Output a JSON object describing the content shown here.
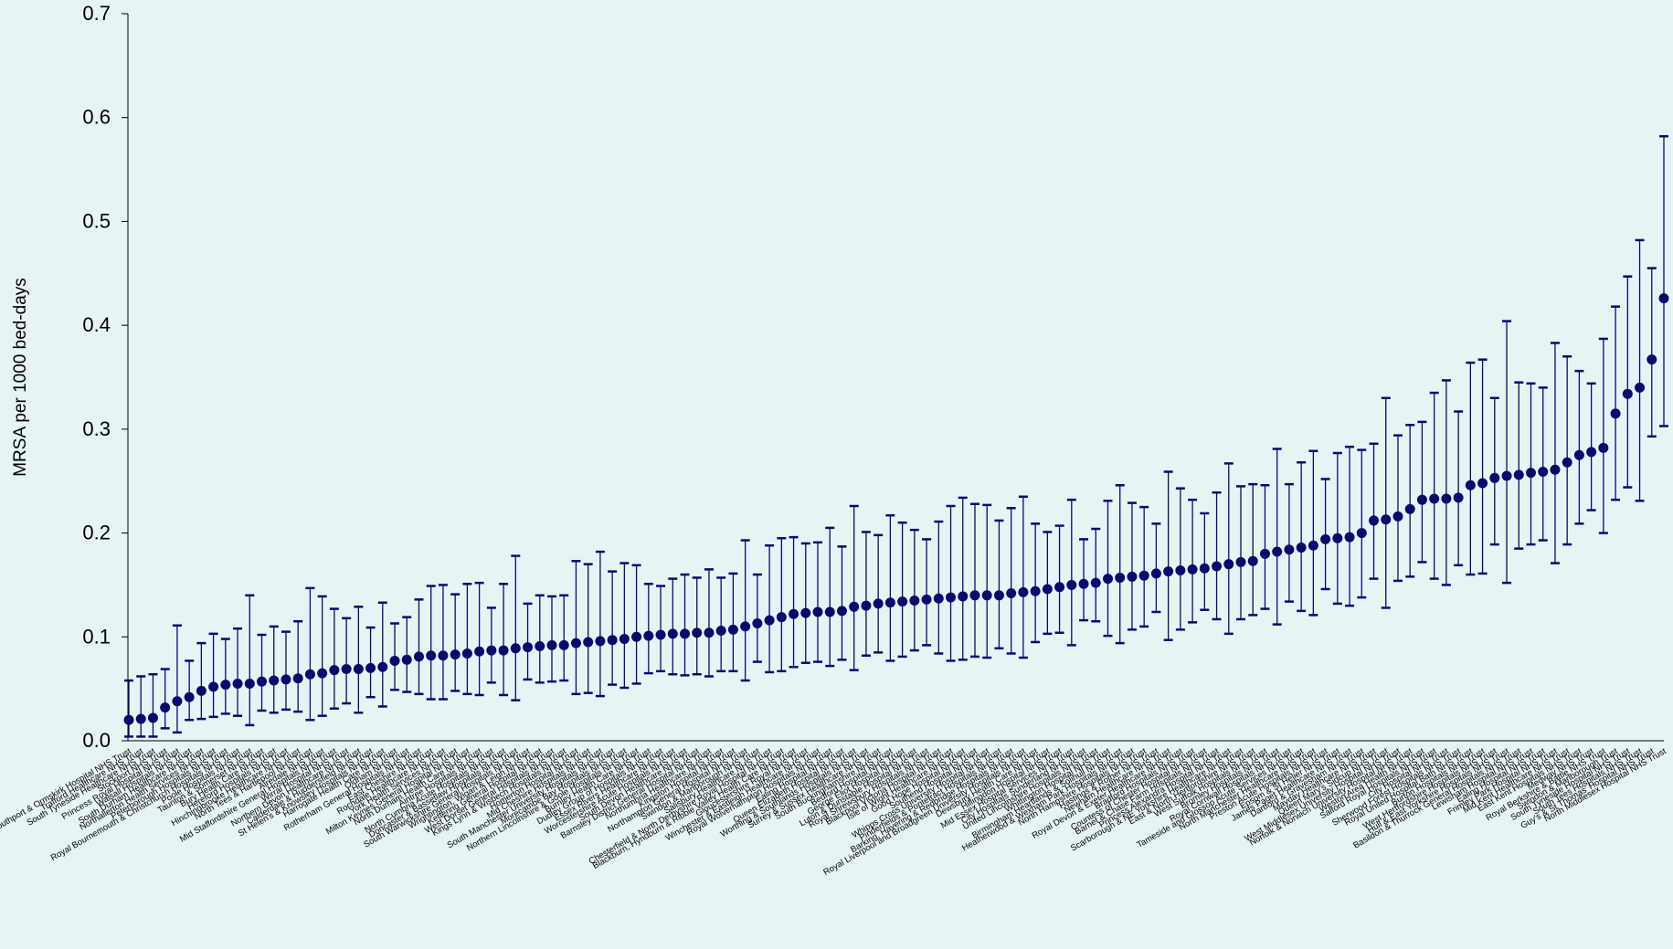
{
  "chart_data": {
    "type": "scatter",
    "title": "",
    "xlabel": "",
    "ylabel": "MRSA per 1000 bed-days",
    "ylim": [
      0,
      0.7
    ],
    "yticks": [
      "0.0",
      "0.1",
      "0.2",
      "0.3",
      "0.4",
      "0.5",
      "0.6",
      "0.7"
    ],
    "grid": false,
    "error_bars": true,
    "point_color": "#0a0a6e",
    "bar_color": "#0a0a6e",
    "points": [
      {
        "label": "Southport & Ormskirk Hospital NHS Trust",
        "y": 0.02,
        "lo": 0.004,
        "hi": 0.058
      },
      {
        "label": "Trafford Healthcare NHS Trust",
        "y": 0.021,
        "lo": 0.004,
        "hi": 0.062
      },
      {
        "label": "South Tyneside Healthcare NHS Trust",
        "y": 0.022,
        "lo": 0.004,
        "hi": 0.064
      },
      {
        "label": "Stockport NHS Trust",
        "y": 0.032,
        "lo": 0.012,
        "hi": 0.069
      },
      {
        "label": "Princess Royal Hospital NHS Trust",
        "y": 0.038,
        "lo": 0.008,
        "hi": 0.111
      },
      {
        "label": "Walsall Hospitals NHS Trust",
        "y": 0.042,
        "lo": 0.02,
        "hi": 0.077
      },
      {
        "label": "South Durham Healthcare NHS Trust",
        "y": 0.048,
        "lo": 0.021,
        "hi": 0.094
      },
      {
        "label": "Northallerton Health Services NHS Trust",
        "y": 0.052,
        "lo": 0.023,
        "hi": 0.103
      },
      {
        "label": "Peterborough Hospitals NHS Trust",
        "y": 0.054,
        "lo": 0.026,
        "hi": 0.098
      },
      {
        "label": "Royal Bournemouth & Christchurch Hospitals NHS Trust",
        "y": 0.055,
        "lo": 0.024,
        "hi": 0.108
      },
      {
        "label": "Poole Hospitals NHS Trust",
        "y": 0.055,
        "lo": 0.015,
        "hi": 0.14
      },
      {
        "label": "Taunton & Somerset NHS Trust",
        "y": 0.057,
        "lo": 0.029,
        "hi": 0.102
      },
      {
        "label": "Bury Health Care NHS Trust",
        "y": 0.058,
        "lo": 0.027,
        "hi": 0.11
      },
      {
        "label": "Hereford Hospitals NHS Trust",
        "y": 0.059,
        "lo": 0.03,
        "hi": 0.105
      },
      {
        "label": "Hinchingbrooke Healthcare NHS Trust",
        "y": 0.06,
        "lo": 0.028,
        "hi": 0.115
      },
      {
        "label": "North Tees & Hartlepool NHS Trust",
        "y": 0.064,
        "lo": 0.02,
        "hi": 0.147
      },
      {
        "label": "Airedale NHS Trust",
        "y": 0.065,
        "lo": 0.024,
        "hi": 0.139
      },
      {
        "label": "Mid Staffordshire General Hospitals NHS Trust",
        "y": 0.068,
        "lo": 0.031,
        "hi": 0.127
      },
      {
        "label": "Wirral Hospital NHS Trust",
        "y": 0.069,
        "lo": 0.036,
        "hi": 0.118
      },
      {
        "label": "Northern Devon Healthcare NHS Trust",
        "y": 0.069,
        "lo": 0.027,
        "hi": 0.129
      },
      {
        "label": "Calderdale & Huddersfield NHS Trust",
        "y": 0.07,
        "lo": 0.042,
        "hi": 0.109
      },
      {
        "label": "St Helen's & Knowsley Hospitals NHS Trust",
        "y": 0.071,
        "lo": 0.033,
        "hi": 0.133
      },
      {
        "label": "Harrogate Health Care NHS Trust",
        "y": 0.077,
        "lo": 0.049,
        "hi": 0.113
      },
      {
        "label": "Oldham NHS Trust",
        "y": 0.078,
        "lo": 0.047,
        "hi": 0.119
      },
      {
        "label": "Rotherham General Hospitals NHS Trust",
        "y": 0.081,
        "lo": 0.045,
        "hi": 0.136
      },
      {
        "label": "East Cheshire NHS Trust",
        "y": 0.082,
        "lo": 0.04,
        "hi": 0.149
      },
      {
        "label": "Rochdale Healthcare NHS Trust",
        "y": 0.082,
        "lo": 0.04,
        "hi": 0.15
      },
      {
        "label": "York Health Services NHS Trust",
        "y": 0.083,
        "lo": 0.048,
        "hi": 0.141
      },
      {
        "label": "Milton Keynes General Hospital NHS Trust",
        "y": 0.084,
        "lo": 0.045,
        "hi": 0.151
      },
      {
        "label": "North Durham Health Care NHS Trust",
        "y": 0.086,
        "lo": 0.044,
        "hi": 0.152
      },
      {
        "label": "Aintree Hospitals NHS Trust",
        "y": 0.087,
        "lo": 0.056,
        "hi": 0.128
      },
      {
        "label": "North Cumbria Acute Hospitals NHS Trust",
        "y": 0.087,
        "lo": 0.044,
        "hi": 0.151
      },
      {
        "label": "Doncaster & Bassetlaw Hospitals NHS Trust",
        "y": 0.089,
        "lo": 0.039,
        "hi": 0.178
      },
      {
        "label": "South Warwickshire General Hospitals NHS Trust",
        "y": 0.09,
        "lo": 0.059,
        "hi": 0.132
      },
      {
        "label": "Wrightington, Wigan & Leigh NHS Trust",
        "y": 0.091,
        "lo": 0.056,
        "hi": 0.14
      },
      {
        "label": "Kettering General Hospital NHS Trust",
        "y": 0.092,
        "lo": 0.057,
        "hi": 0.139
      },
      {
        "label": "West Dorset General Hospitals NHS Trust",
        "y": 0.092,
        "lo": 0.058,
        "hi": 0.14
      },
      {
        "label": "Kings Lynn & Wisbech Hospitals NHS Trust",
        "y": 0.094,
        "lo": 0.045,
        "hi": 0.173
      },
      {
        "label": "Homerton Hospital NHS Trust",
        "y": 0.095,
        "lo": 0.046,
        "hi": 0.17
      },
      {
        "label": "Mid Cheshire Hospitals NHS Trust",
        "y": 0.096,
        "lo": 0.043,
        "hi": 0.182
      },
      {
        "label": "South Manchester University Hospitals NHS Trust",
        "y": 0.097,
        "lo": 0.054,
        "hi": 0.163
      },
      {
        "label": "Morecambe Bay Hospitals NHS Trust",
        "y": 0.098,
        "lo": 0.051,
        "hi": 0.171
      },
      {
        "label": "Northern Lincolnshire & Goole Hospitals NHS Trust",
        "y": 0.1,
        "lo": 0.055,
        "hi": 0.169
      },
      {
        "label": "Burnley Health Care NHS Trust",
        "y": 0.101,
        "lo": 0.065,
        "hi": 0.151
      },
      {
        "label": "Dudley Group of Hospitals NHS Trust",
        "y": 0.102,
        "lo": 0.067,
        "hi": 0.149
      },
      {
        "label": "Essex Rivers Healthcare NHS Trust",
        "y": 0.103,
        "lo": 0.064,
        "hi": 0.156
      },
      {
        "label": "Worcestershire Acute Hospitals NHS Trust",
        "y": 0.103,
        "lo": 0.063,
        "hi": 0.16
      },
      {
        "label": "South Devon Healthcare NHS Trust",
        "y": 0.104,
        "lo": 0.064,
        "hi": 0.157
      },
      {
        "label": "Barnsley District General Hospital NHS Trust",
        "y": 0.104,
        "lo": 0.062,
        "hi": 0.165
      },
      {
        "label": "Northumbria Healthcare NHS Trust",
        "y": 0.106,
        "lo": 0.067,
        "hi": 0.157
      },
      {
        "label": "Kingston Hospital NHS Trust",
        "y": 0.107,
        "lo": 0.067,
        "hi": 0.161
      },
      {
        "label": "Northampton General Hospital NHS Trust",
        "y": 0.11,
        "lo": 0.058,
        "hi": 0.193
      },
      {
        "label": "Swindon & Marlborough NHS Trust",
        "y": 0.113,
        "lo": 0.076,
        "hi": 0.16
      },
      {
        "label": "Salisbury Healthcare NHS Trust",
        "y": 0.116,
        "lo": 0.066,
        "hi": 0.188
      },
      {
        "label": "Chesterfield & North Derbyshire Royal Hospital NHS Trust",
        "y": 0.119,
        "lo": 0.067,
        "hi": 0.195
      },
      {
        "label": "Blackburn, Hyndburn & Ribble Valley Health Care NHS Trust",
        "y": 0.122,
        "lo": 0.071,
        "hi": 0.196
      },
      {
        "label": "Gloucestershire Royal NHS Trust",
        "y": 0.123,
        "lo": 0.075,
        "hi": 0.19
      },
      {
        "label": "Winchester & Eastleigh Healthcare NHS Trust",
        "y": 0.124,
        "lo": 0.076,
        "hi": 0.191
      },
      {
        "label": "Royal Wolverhampton Hospitals NHS Trust",
        "y": 0.124,
        "lo": 0.072,
        "hi": 0.205
      },
      {
        "label": "Ealing Hospital NHS Trust",
        "y": 0.125,
        "lo": 0.078,
        "hi": 0.187
      },
      {
        "label": "Queen Elizabeth Hospital NHS Trust",
        "y": 0.129,
        "lo": 0.068,
        "hi": 0.226
      },
      {
        "label": "Worthing & Southlands Hospitals NHS Trust",
        "y": 0.13,
        "lo": 0.082,
        "hi": 0.201
      },
      {
        "label": "Surrey & Sussex Healthcare NHS Trust",
        "y": 0.132,
        "lo": 0.085,
        "hi": 0.198
      },
      {
        "label": "South Buckinghamshire NHS Trust",
        "y": 0.133,
        "lo": 0.077,
        "hi": 0.217
      },
      {
        "label": "Bedford Hospital NHS Trust",
        "y": 0.134,
        "lo": 0.081,
        "hi": 0.21
      },
      {
        "label": "George Eliot Hospital NHS Trust",
        "y": 0.135,
        "lo": 0.087,
        "hi": 0.203
      },
      {
        "label": "Luton & Dunstable Hospital NHS Trust",
        "y": 0.136,
        "lo": 0.092,
        "hi": 0.194
      },
      {
        "label": "Royal Shrewsbury Hospitals NHS Trust",
        "y": 0.137,
        "lo": 0.084,
        "hi": 0.211
      },
      {
        "label": "Blackpool Victoria Hospital NHS Trust",
        "y": 0.138,
        "lo": 0.077,
        "hi": 0.226
      },
      {
        "label": "Isle of Wight Healthcare NHS Trust",
        "y": 0.139,
        "lo": 0.078,
        "hi": 0.234
      },
      {
        "label": "Good Hope Hospital NHS Trust",
        "y": 0.14,
        "lo": 0.081,
        "hi": 0.228
      },
      {
        "label": "Southend Hospital NHS Trust",
        "y": 0.14,
        "lo": 0.08,
        "hi": 0.227
      },
      {
        "label": "Whipps Cross University Hospital NHS Trust",
        "y": 0.14,
        "lo": 0.089,
        "hi": 0.212
      },
      {
        "label": "Pinderfields & Pontefract Hospitals NHS Trust",
        "y": 0.142,
        "lo": 0.084,
        "hi": 0.224
      },
      {
        "label": "Barking, Havering & Redbridge Hospitals NHS Trust",
        "y": 0.143,
        "lo": 0.08,
        "hi": 0.235
      },
      {
        "label": "Royal Liverpool and Broadgreen University Hospitals NHS Trust",
        "y": 0.144,
        "lo": 0.095,
        "hi": 0.209
      },
      {
        "label": "Dewsbury Health Care NHS Trust",
        "y": 0.146,
        "lo": 0.103,
        "hi": 0.201
      },
      {
        "label": "Hillingdon Hospital NHS Trust",
        "y": 0.148,
        "lo": 0.104,
        "hi": 0.207
      },
      {
        "label": "Mid Essex Hospital Services NHS Trust",
        "y": 0.15,
        "lo": 0.092,
        "hi": 0.232
      },
      {
        "label": "City Hospitals Sunderland NHS Trust",
        "y": 0.151,
        "lo": 0.116,
        "hi": 0.194
      },
      {
        "label": "United Lincolnshire Hospitals NHS Trust",
        "y": 0.152,
        "lo": 0.115,
        "hi": 0.204
      },
      {
        "label": "Whittington Hospital NHS Trust",
        "y": 0.156,
        "lo": 0.101,
        "hi": 0.231
      },
      {
        "label": "Birmingham Heartlands & Solihull NHS Trust",
        "y": 0.157,
        "lo": 0.094,
        "hi": 0.246
      },
      {
        "label": "Heatherwood & Wexham Park Hospitals NHS Trust",
        "y": 0.158,
        "lo": 0.107,
        "hi": 0.229
      },
      {
        "label": "North Hampshire Hospitals NHS Trust",
        "y": 0.159,
        "lo": 0.11,
        "hi": 0.225
      },
      {
        "label": "Hastings & Rother NHS Trust",
        "y": 0.161,
        "lo": 0.124,
        "hi": 0.209
      },
      {
        "label": "Newham Healthcare NHS Trust",
        "y": 0.163,
        "lo": 0.097,
        "hi": 0.259
      },
      {
        "label": "Royal Devon & Exeter Healthcare NHS Trust",
        "y": 0.164,
        "lo": 0.107,
        "hi": 0.243
      },
      {
        "label": "Bradford Hospitals NHS Trust",
        "y": 0.165,
        "lo": 0.114,
        "hi": 0.232
      },
      {
        "label": "Countess of Chester Hospital NHS Trust",
        "y": 0.166,
        "lo": 0.126,
        "hi": 0.219
      },
      {
        "label": "Barnet & Chase Farm Hospitals NHS Trust",
        "y": 0.168,
        "lo": 0.117,
        "hi": 0.239
      },
      {
        "label": "Princess Alexandra Hospital NHS Trust",
        "y": 0.17,
        "lo": 0.103,
        "hi": 0.267
      },
      {
        "label": "Scarborough & NE Yorkshire Healthcare NHS Trust",
        "y": 0.172,
        "lo": 0.117,
        "hi": 0.245
      },
      {
        "label": "East & North Hertfordshire NHS Trust",
        "y": 0.173,
        "lo": 0.121,
        "hi": 0.247
      },
      {
        "label": "West Suffolk Hospitals NHS Trust",
        "y": 0.18,
        "lo": 0.127,
        "hi": 0.246
      },
      {
        "label": "Bromley Hospitals NHS Trust",
        "y": 0.182,
        "lo": 0.112,
        "hi": 0.281
      },
      {
        "label": "Royal Cornwall Hospitals NHS Trust",
        "y": 0.184,
        "lo": 0.134,
        "hi": 0.247
      },
      {
        "label": "Tameside and Glossop Acute Services NHS Trust",
        "y": 0.186,
        "lo": 0.125,
        "hi": 0.268
      },
      {
        "label": "North Manchester Healthcare NHS Trust",
        "y": 0.188,
        "lo": 0.121,
        "hi": 0.279
      },
      {
        "label": "Preston Acute Hospitals NHS Trust",
        "y": 0.194,
        "lo": 0.146,
        "hi": 0.252
      },
      {
        "label": "Epsom & St Helier NHS Trust",
        "y": 0.195,
        "lo": 0.132,
        "hi": 0.277
      },
      {
        "label": "James Paget Healthcare NHS Trust",
        "y": 0.196,
        "lo": 0.13,
        "hi": 0.283
      },
      {
        "label": "Dartford & Gravesham NHS Trust",
        "y": 0.2,
        "lo": 0.138,
        "hi": 0.28
      },
      {
        "label": "Mayday Healthcare NHS Trust",
        "y": 0.212,
        "lo": 0.156,
        "hi": 0.286
      },
      {
        "label": "Queen Mary's Sidcup NHS Trust",
        "y": 0.213,
        "lo": 0.128,
        "hi": 0.33
      },
      {
        "label": "West Middlesex University Hospital NHS Trust",
        "y": 0.216,
        "lo": 0.154,
        "hi": 0.294
      },
      {
        "label": "Norfolk & Norwich University Hospital NHS Trust",
        "y": 0.223,
        "lo": 0.158,
        "hi": 0.304
      },
      {
        "label": "Weston Area Health NHS Trust",
        "y": 0.232,
        "lo": 0.172,
        "hi": 0.307
      },
      {
        "label": "Salford Royal Hospitals NHS Trust",
        "y": 0.233,
        "lo": 0.156,
        "hi": 0.335
      },
      {
        "label": "City Hospital NHS Trust",
        "y": 0.233,
        "lo": 0.15,
        "hi": 0.347
      },
      {
        "label": "Sherwood Forest Hospitals NHS Trust",
        "y": 0.234,
        "lo": 0.169,
        "hi": 0.317
      },
      {
        "label": "Royal United Hospital Bath NHS Trust",
        "y": 0.246,
        "lo": 0.16,
        "hi": 0.364
      },
      {
        "label": "Burton Hospitals NHS Trust",
        "y": 0.248,
        "lo": 0.161,
        "hi": 0.367
      },
      {
        "label": "West Hertfordshire Hospitals NHS Trust",
        "y": 0.253,
        "lo": 0.189,
        "hi": 0.33
      },
      {
        "label": "Hull & East Yorkshire Hospitals NHS Trust",
        "y": 0.255,
        "lo": 0.152,
        "hi": 0.404
      },
      {
        "label": "Basildon & Thurrock General Hospitals NHS Trust",
        "y": 0.256,
        "lo": 0.185,
        "hi": 0.345
      },
      {
        "label": "Lewisham Hospital NHS Trust",
        "y": 0.258,
        "lo": 0.189,
        "hi": 0.344
      },
      {
        "label": "Ealing Hospital NHS Trust",
        "y": 0.259,
        "lo": 0.193,
        "hi": 0.34
      },
      {
        "label": "Frimley Park Hospital NHS Trust",
        "y": 0.261,
        "lo": 0.171,
        "hi": 0.383
      },
      {
        "label": "Mid Kent Healthcare NHS Trust",
        "y": 0.268,
        "lo": 0.189,
        "hi": 0.37
      },
      {
        "label": "East Kent Hospitals NHS Trust",
        "y": 0.275,
        "lo": 0.209,
        "hi": 0.356
      },
      {
        "label": "Medway NHS Trust",
        "y": 0.278,
        "lo": 0.222,
        "hi": 0.344
      },
      {
        "label": "Royal Berkshire & Battle NHS Trust",
        "y": 0.282,
        "lo": 0.2,
        "hi": 0.387
      },
      {
        "label": "Swindon & Marlborough Trust",
        "y": 0.315,
        "lo": 0.232,
        "hi": 0.418
      },
      {
        "label": "South Tyneside Hospital NHS Trust",
        "y": 0.334,
        "lo": 0.244,
        "hi": 0.447
      },
      {
        "label": "South Tees Hospitals NHS Trust",
        "y": 0.34,
        "lo": 0.231,
        "hi": 0.482
      },
      {
        "label": "Guy's & St Thomas' Hospital NHS Trust",
        "y": 0.367,
        "lo": 0.293,
        "hi": 0.455
      },
      {
        "label": "North Middlesex Hospital NHS Trust",
        "y": 0.426,
        "lo": 0.303,
        "hi": 0.582
      }
    ]
  }
}
